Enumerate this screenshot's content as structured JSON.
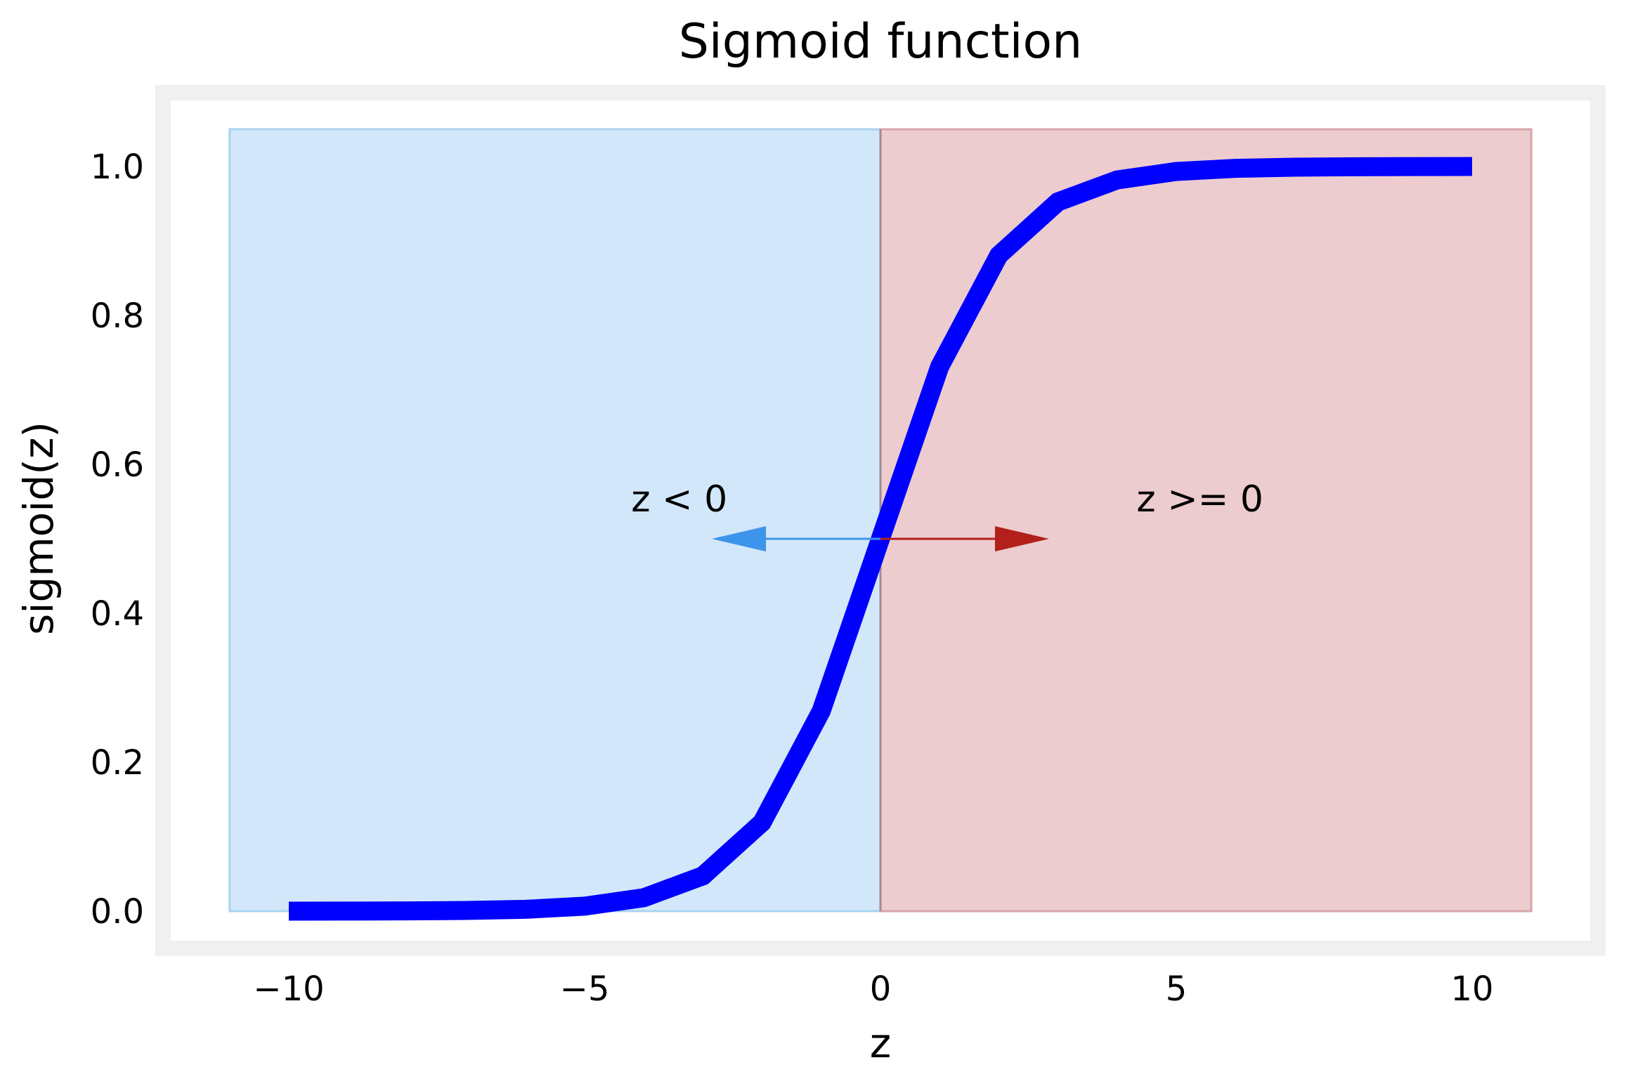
{
  "chart_data": {
    "type": "line",
    "title": "Sigmoid function",
    "xlabel": "z",
    "ylabel": "sigmoid(z)",
    "xlim": [
      -11,
      11
    ],
    "ylim": [
      -0.05,
      1.05
    ],
    "grid": false,
    "x_ticks": [
      -10,
      -5,
      0,
      5,
      10
    ],
    "x_tick_labels": [
      "−10",
      "−5",
      "0",
      "5",
      "10"
    ],
    "y_ticks": [
      0.0,
      0.2,
      0.4,
      0.6,
      0.8,
      1.0
    ],
    "y_tick_labels": [
      "0.0",
      "0.2",
      "0.4",
      "0.6",
      "0.8",
      "1.0"
    ],
    "series": [
      {
        "color": "#0000ff",
        "x": [
          -10,
          -9,
          -8,
          -7,
          -6,
          -5,
          -4,
          -3,
          -2,
          -1,
          0,
          1,
          2,
          3,
          4,
          5,
          6,
          7,
          8,
          9,
          10
        ],
        "y": [
          4.54e-05,
          0.0001234,
          0.0003354,
          0.000911,
          0.002473,
          0.006693,
          0.017986,
          0.047426,
          0.119203,
          0.268941,
          0.5,
          0.731059,
          0.880797,
          0.952574,
          0.982014,
          0.993307,
          0.997527,
          0.999089,
          0.999665,
          0.999877,
          0.999955
        ]
      }
    ],
    "regions": [
      {
        "x0": -11,
        "x1": 0,
        "y0": 0,
        "y1": 1.05,
        "color": "#d2e8fa",
        "edge": "#a9d3f0"
      },
      {
        "x0": 0,
        "x1": 11,
        "y0": 0,
        "y1": 1.05,
        "color": "#ecccce",
        "edge": "#d9a6aa"
      }
    ],
    "annotations": [
      {
        "text": "z < 0",
        "text_x": -3.4,
        "text_y": 0.55,
        "arrow_from": [
          0,
          0.5
        ],
        "arrow_to": [
          -2.85,
          0.5
        ],
        "color": "#3d94eb"
      },
      {
        "text": "z >= 0",
        "text_x": 5.4,
        "text_y": 0.55,
        "arrow_from": [
          0,
          0.5
        ],
        "arrow_to": [
          2.85,
          0.5
        ],
        "color": "#b3201a"
      }
    ]
  }
}
